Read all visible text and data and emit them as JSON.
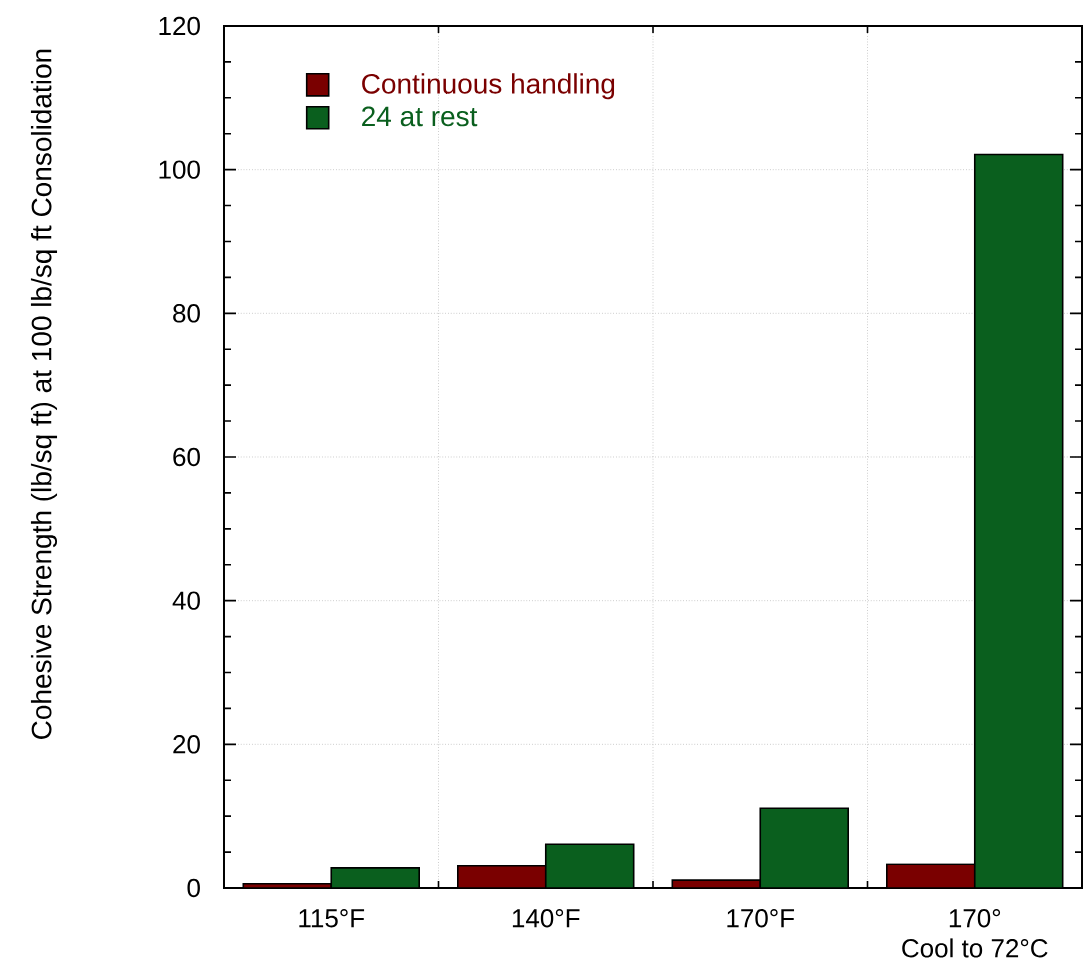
{
  "chart_data": {
    "type": "bar",
    "ylabel": "Cohesive Strength (lb/sq ft) at 100 lb/sq ft Consolidation",
    "categories": [
      "115°F",
      "140°F",
      "170°F",
      "170°\nCool to 72°C"
    ],
    "series": [
      {
        "name": "Continuous handling",
        "color": "#7a0000",
        "values": [
          0.6,
          3.1,
          1.1,
          3.3
        ]
      },
      {
        "name": "24 at rest",
        "color": "#0a5f1e",
        "values": [
          2.8,
          6.1,
          11.1,
          102.1
        ]
      }
    ],
    "ylim": [
      0,
      120
    ],
    "yticks": [
      0,
      20,
      40,
      60,
      80,
      100,
      120
    ],
    "grid": true,
    "legend": "top left"
  }
}
